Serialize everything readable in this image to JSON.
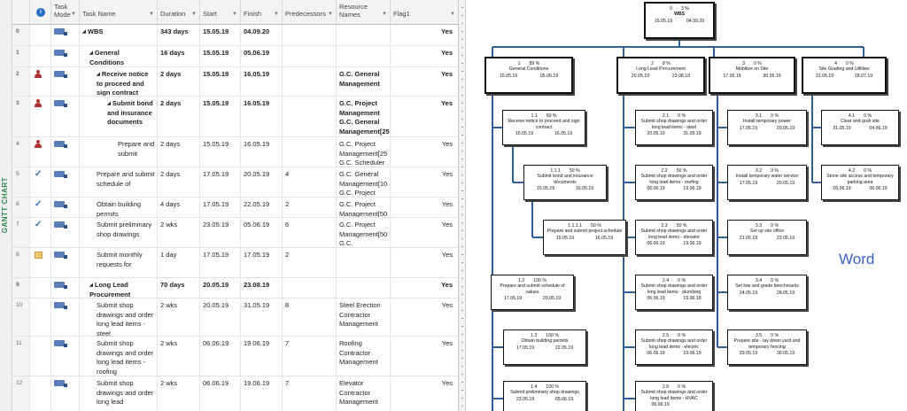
{
  "view_label": "GANTT CHART",
  "columns": {
    "task_mode": "Task Mode",
    "task_name": "Task Name",
    "duration": "Duration",
    "start": "Start",
    "finish": "Finish",
    "predecessors": "Predecessors",
    "resource_names": "Resource Names",
    "flag1": "Flag1"
  },
  "rows": [
    {
      "id": "0",
      "indicator": "",
      "level": 0,
      "summary": true,
      "name": "WBS",
      "duration": "343 days",
      "start": "15.05.19",
      "finish": "04.09.20",
      "pred": "",
      "res": "",
      "flag": "Yes"
    },
    {
      "id": "1",
      "indicator": "",
      "level": 1,
      "summary": true,
      "name": "General Conditions",
      "duration": "16 days",
      "start": "15.05.19",
      "finish": "05.06.19",
      "pred": "",
      "res": "",
      "flag": "Yes"
    },
    {
      "id": "2",
      "indicator": "person",
      "level": 2,
      "summary": true,
      "name": "Receive notice to proceed and sign contract",
      "duration": "2 days",
      "start": "15.05.19",
      "finish": "16.05.19",
      "pred": "",
      "res": "G.C. General Management",
      "flag": "Yes"
    },
    {
      "id": "3",
      "indicator": "person",
      "level": 3,
      "summary": true,
      "name": "Submit bond and insurance documents",
      "duration": "2 days",
      "start": "15.05.19",
      "finish": "16.05.19",
      "pred": "",
      "res": "G.C. Project Management G.C. General Management[25",
      "flag": "Yes"
    },
    {
      "id": "4",
      "indicator": "person",
      "level": 4,
      "summary": false,
      "name": "Prepare and submit",
      "duration": "2 days",
      "start": "15.05.19",
      "finish": "16.05.19",
      "pred": "",
      "res": "G.C. Project Management[25 G.C. Scheduler",
      "flag": "Yes"
    },
    {
      "id": "5",
      "indicator": "check",
      "level": 2,
      "summary": false,
      "name": "Prepare and submit schedule of",
      "duration": "2 days",
      "start": "17.05.19",
      "finish": "20.05.19",
      "pred": "4",
      "res": "G.C. General Management[10 G.C. Project",
      "flag": "Yes"
    },
    {
      "id": "6",
      "indicator": "check",
      "level": 2,
      "summary": false,
      "name": "Obtain building permits",
      "duration": "4 days",
      "start": "17.05.19",
      "finish": "22.05.19",
      "pred": "2",
      "res": "G.C. Project Management[50",
      "flag": "Yes"
    },
    {
      "id": "7",
      "indicator": "check",
      "level": 2,
      "summary": false,
      "name": "Submit preliminary shop drawings",
      "duration": "2 wks",
      "start": "23.05.19",
      "finish": "05.06.19",
      "pred": "6",
      "res": "G.C. Project Management[50 G.C.",
      "flag": "Yes"
    },
    {
      "id": "8",
      "indicator": "note",
      "level": 2,
      "summary": false,
      "name": "Submit monthly requests for",
      "duration": "1 day",
      "start": "17.05.19",
      "finish": "17.05.19",
      "pred": "2",
      "res": "",
      "flag": "Yes"
    },
    {
      "id": "9",
      "indicator": "",
      "level": 1,
      "summary": true,
      "name": "Long Lead Procurement",
      "duration": "70 days",
      "start": "20.05.19",
      "finish": "23.08.19",
      "pred": "",
      "res": "",
      "flag": "Yes"
    },
    {
      "id": "10",
      "indicator": "",
      "level": 2,
      "summary": false,
      "name": "Submit shop drawings and order long lead items - steel",
      "duration": "2 wks",
      "start": "20.05.19",
      "finish": "31.05.19",
      "pred": "8",
      "res": "Steel Erection Contractor Management",
      "flag": "Yes"
    },
    {
      "id": "11",
      "indicator": "",
      "level": 2,
      "summary": false,
      "name": "Submit shop drawings and order long lead items - roofing",
      "duration": "2 wks",
      "start": "06.06.19",
      "finish": "19.06.19",
      "pred": "7",
      "res": "Roofing Contractor Management",
      "flag": "Yes"
    },
    {
      "id": "12",
      "indicator": "",
      "level": 2,
      "summary": false,
      "name": "Submit shop drawings and order long lead",
      "duration": "2 wks",
      "start": "06.06.19",
      "finish": "19.06.19",
      "pred": "7",
      "res": "Elevator Contractor Management",
      "flag": "Yes"
    }
  ],
  "wbs": {
    "word_label": "Word",
    "nodes": [
      {
        "code": "0",
        "pct": "3 %",
        "name": "WBS",
        "start": "15.05.19",
        "finish": "04.09.20"
      },
      {
        "code": "1",
        "pct": "89 %",
        "name": "General Conditions",
        "start": "15.05.19",
        "finish": "05.06.19"
      },
      {
        "code": "2",
        "pct": "8 %",
        "name": "Long Lead Procurement",
        "start": "20.05.19",
        "finish": "23.08.19"
      },
      {
        "code": "3",
        "pct": "0 %",
        "name": "Mobilize on Site",
        "start": "17.05.19",
        "finish": "30.05.19"
      },
      {
        "code": "4",
        "pct": "0 %",
        "name": "Site Grading and Utilities",
        "start": "31.05.19",
        "finish": "18.07.19"
      },
      {
        "code": "1.1",
        "pct": "50 %",
        "name": "Receive notice to proceed and sign contract",
        "start": "15.05.19",
        "finish": "16.05.19"
      },
      {
        "code": "1.1.1",
        "pct": "50 %",
        "name": "Submit bond and insurance documents",
        "start": "15.05.19",
        "finish": "16.05.19"
      },
      {
        "code": "1.1.1.1",
        "pct": "50 %",
        "name": "Prepare and submit project schedule",
        "start": "15.05.19",
        "finish": "16.05.19"
      },
      {
        "code": "1.2",
        "pct": "100 %",
        "name": "Prepare and submit schedule of values",
        "start": "17.05.19",
        "finish": "20.05.19"
      },
      {
        "code": "1.3",
        "pct": "100 %",
        "name": "Obtain building permits",
        "start": "17.05.19",
        "finish": "22.05.19"
      },
      {
        "code": "1.4",
        "pct": "100 %",
        "name": "Submit preliminary shop drawings",
        "start": "23.05.19",
        "finish": "05.06.19"
      },
      {
        "code": "2.1",
        "pct": "0 %",
        "name": "Submit shop drawings and order long lead items - steel",
        "start": "20.05.19",
        "finish": "31.05.19"
      },
      {
        "code": "2.2",
        "pct": "50 %",
        "name": "Submit shop drawings and order long lead items - roofing",
        "start": "06.06.19",
        "finish": "19.06.19"
      },
      {
        "code": "2.3",
        "pct": "50 %",
        "name": "Submit shop drawings and order long lead items - elevator",
        "start": "06.06.19",
        "finish": "19.06.19"
      },
      {
        "code": "2.4",
        "pct": "0 %",
        "name": "Submit shop drawings and order long lead items - plumbing",
        "start": "06.06.19",
        "finish": "19.06.19"
      },
      {
        "code": "2.5",
        "pct": "0 %",
        "name": "Submit shop drawings and order long lead items - electric",
        "start": "06.06.19",
        "finish": "19.06.19"
      },
      {
        "code": "2.6",
        "pct": "0 %",
        "name": "Submit shop drawings and order long lead items - HVAC",
        "start": "06.06.19",
        "finish": ""
      },
      {
        "code": "3.1",
        "pct": "0 %",
        "name": "Install temporary power",
        "start": "17.05.19",
        "finish": "20.05.19"
      },
      {
        "code": "3.2",
        "pct": "0 %",
        "name": "Install temporary water service",
        "start": "17.05.19",
        "finish": "20.05.19"
      },
      {
        "code": "3.3",
        "pct": "0 %",
        "name": "Set up site office",
        "start": "21.05.19",
        "finish": "23.05.19"
      },
      {
        "code": "3.4",
        "pct": "0 %",
        "name": "Set line and grade benchmarks",
        "start": "24.05.19",
        "finish": "28.05.19"
      },
      {
        "code": "3.5",
        "pct": "0 %",
        "name": "Prepare site - lay down yard and temporary fencing",
        "start": "29.05.19",
        "finish": "30.05.19"
      },
      {
        "code": "4.1",
        "pct": "0 %",
        "name": "Clear and grub site",
        "start": "31.05.19",
        "finish": "04.06.19"
      },
      {
        "code": "4.2",
        "pct": "0 %",
        "name": "Stone site access and temporary parking area",
        "start": "05.06.19",
        "finish": "06.06.19"
      }
    ]
  }
}
